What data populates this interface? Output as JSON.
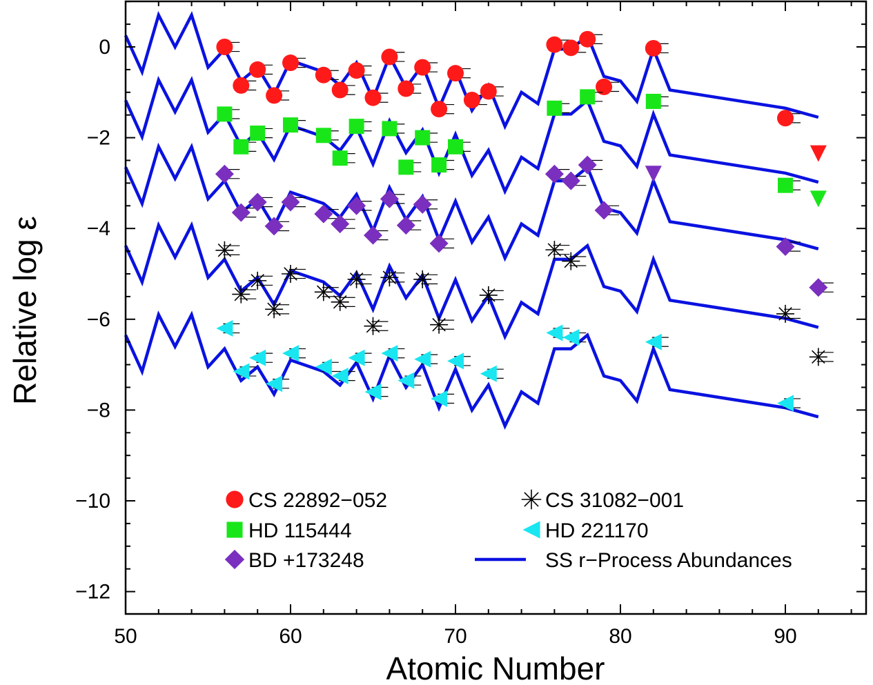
{
  "chart_data": {
    "type": "scatter",
    "title": "",
    "xlabel": "Atomic Number",
    "ylabel": "Relative log ε",
    "xlim": [
      50,
      95
    ],
    "ylim": [
      -12.5,
      1
    ],
    "x_ticks": [
      50,
      60,
      70,
      80,
      90
    ],
    "y_ticks": [
      0,
      -2,
      -4,
      -6,
      -8,
      -10,
      -12
    ],
    "y_tick_labels": [
      "0",
      "−2",
      "−4",
      "−6",
      "−8",
      "−10",
      "−12"
    ],
    "grid": false,
    "legend_position": "bottom",
    "series": [
      {
        "name": "CS 22892−052",
        "marker": "circle",
        "color": "#ff1a1a",
        "x": [
          56,
          57,
          58,
          59,
          60,
          62,
          63,
          64,
          65,
          66,
          67,
          68,
          69,
          70,
          71,
          72,
          76,
          77,
          78,
          79,
          82,
          90
        ],
        "y": [
          0.0,
          -0.85,
          -0.5,
          -1.07,
          -0.35,
          -0.62,
          -0.95,
          -0.52,
          -1.12,
          -0.22,
          -0.92,
          -0.45,
          -1.37,
          -0.58,
          -1.17,
          -0.98,
          0.05,
          -0.02,
          0.17,
          -0.88,
          -0.03,
          -1.57
        ],
        "upper_limits": [
          {
            "x": 92,
            "y": -2.35
          }
        ]
      },
      {
        "name": "HD 115444",
        "marker": "square",
        "color": "#19e619",
        "x": [
          56,
          57,
          58,
          60,
          62,
          63,
          64,
          66,
          67,
          68,
          69,
          70,
          76,
          78,
          82,
          90
        ],
        "y": [
          -1.48,
          -2.2,
          -1.9,
          -1.72,
          -1.95,
          -2.45,
          -1.75,
          -1.8,
          -2.65,
          -2.0,
          -2.6,
          -2.2,
          -1.35,
          -1.1,
          -1.2,
          -3.05
        ],
        "upper_limits": [
          {
            "x": 92,
            "y": -3.35
          }
        ]
      },
      {
        "name": "BD +173248",
        "marker": "diamond",
        "color": "#7a2fbf",
        "x": [
          56,
          57,
          58,
          59,
          60,
          62,
          63,
          64,
          65,
          66,
          67,
          68,
          69,
          76,
          77,
          78,
          79,
          90,
          92
        ],
        "y": [
          -2.8,
          -3.65,
          -3.42,
          -3.95,
          -3.42,
          -3.68,
          -3.9,
          -3.5,
          -4.15,
          -3.35,
          -3.93,
          -3.47,
          -4.33,
          -2.8,
          -2.95,
          -2.6,
          -3.6,
          -4.4,
          -5.3
        ],
        "upper_limits": [
          {
            "x": 82,
            "y": -2.8
          }
        ]
      },
      {
        "name": "CS 31082−001",
        "marker": "asterisk",
        "color": "#000000",
        "x": [
          56,
          57,
          58,
          59,
          60,
          62,
          63,
          64,
          65,
          66,
          68,
          69,
          72,
          76,
          77,
          90,
          92
        ],
        "y": [
          -4.48,
          -5.45,
          -5.15,
          -5.78,
          -5.0,
          -5.4,
          -5.62,
          -5.12,
          -6.15,
          -5.08,
          -5.12,
          -6.12,
          -5.47,
          -4.47,
          -4.72,
          -5.88,
          -6.83
        ]
      },
      {
        "name": "HD 221170",
        "marker": "triangle-left",
        "color": "#19e6f0",
        "x": [
          56,
          57,
          58,
          59,
          60,
          62,
          63,
          64,
          65,
          66,
          67,
          68,
          69,
          70,
          72,
          76,
          77,
          82,
          90
        ],
        "y": [
          -6.2,
          -7.15,
          -6.85,
          -7.42,
          -6.75,
          -7.05,
          -7.25,
          -6.85,
          -7.6,
          -6.75,
          -7.35,
          -6.88,
          -7.75,
          -6.92,
          -7.2,
          -6.3,
          -6.4,
          -6.5,
          -7.85
        ]
      },
      {
        "name": "SS r−Process Abundances",
        "type": "line",
        "color": "#0a12e0",
        "x": [
          50,
          51,
          52,
          53,
          54,
          55,
          56,
          57,
          58,
          59,
          60,
          62,
          63,
          64,
          65,
          66,
          67,
          68,
          69,
          70,
          71,
          72,
          73,
          74,
          75,
          76,
          77,
          78,
          79,
          80,
          81,
          82,
          83,
          90,
          92
        ],
        "y": [
          0.25,
          -0.55,
          0.7,
          0.0,
          0.7,
          -0.45,
          -0.05,
          -0.75,
          -0.45,
          -1.05,
          -0.3,
          -0.55,
          -0.85,
          -0.35,
          -1.15,
          -0.2,
          -0.9,
          -0.4,
          -1.35,
          -0.5,
          -1.4,
          -0.85,
          -1.75,
          -1.0,
          -1.25,
          -0.05,
          -0.05,
          0.25,
          -0.65,
          -0.75,
          -1.2,
          -0.05,
          -0.95,
          -1.35,
          -1.55
        ],
        "offsets": [
          0,
          -1.43,
          -2.9,
          -4.63,
          -6.6
        ]
      }
    ]
  }
}
